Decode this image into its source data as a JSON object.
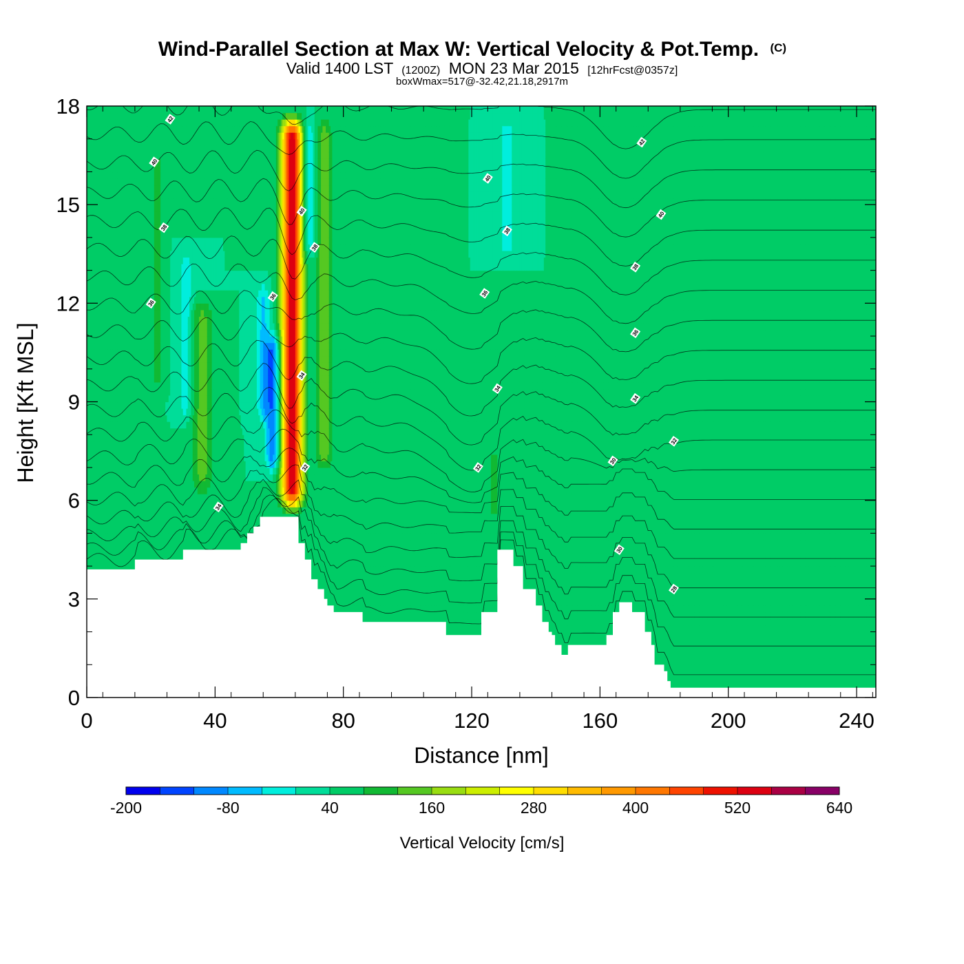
{
  "chart_data": {
    "type": "heatmap",
    "title": "Wind-Parallel Section at Max W: Vertical Velocity & Pot.Temp.",
    "title_mark": "(C)",
    "subtitle_parts": [
      "Valid 1400 LST",
      "(1200Z)",
      "MON 23 Mar 2015",
      "[12hrFcst@0357z]"
    ],
    "subsubtitle": "boxWmax=517@-32.42,21.18,2917m",
    "xlabel": "Distance [nm]",
    "ylabel": "Height [Kft MSL]",
    "xlim": [
      0,
      246
    ],
    "ylim": [
      0,
      18
    ],
    "xticks": [
      0,
      40,
      80,
      120,
      160,
      200,
      240
    ],
    "yticks": [
      0,
      3,
      6,
      9,
      12,
      15,
      18
    ],
    "colorbar": {
      "title": "Vertical Velocity [cm/s]",
      "min": -200,
      "step": 40,
      "labels": [
        -200,
        -80,
        40,
        160,
        280,
        400,
        520,
        640
      ],
      "colors": [
        "#0000ee",
        "#0044ff",
        "#0088ff",
        "#00bbff",
        "#00eedd",
        "#00dd99",
        "#00cc66",
        "#11b933",
        "#55c822",
        "#99dd11",
        "#ccee00",
        "#ffff00",
        "#ffdd00",
        "#ffbb00",
        "#ff9900",
        "#ff7700",
        "#ff4400",
        "#ee1100",
        "#dd0011",
        "#aa0044",
        "#880066"
      ]
    },
    "background_w": 40,
    "w_features": [
      {
        "x": 64,
        "xw": 3.2,
        "ybot": 5.4,
        "ytop": 18,
        "peak": 560
      },
      {
        "x": 74,
        "xw": 2.5,
        "ybot": 6.5,
        "ytop": 18,
        "peak": 150
      },
      {
        "x": 36,
        "xw": 3.5,
        "ybot": 5.8,
        "ytop": 12.5,
        "peak": 135
      },
      {
        "x": 22,
        "xw": 1.6,
        "ybot": 9,
        "ytop": 17,
        "peak": 110
      },
      {
        "x": 58,
        "xw": 2.3,
        "ybot": 6.5,
        "ytop": 11.5,
        "peak": -120
      },
      {
        "x": 55,
        "xw": 2.2,
        "ybot": 8,
        "ytop": 13,
        "peak": -50
      },
      {
        "x": 69,
        "xw": 2.2,
        "ybot": 13,
        "ytop": 18,
        "peak": -60
      },
      {
        "x": 131,
        "xw": 2.0,
        "ybot": 13,
        "ytop": 18,
        "peak": -40
      },
      {
        "x": 31,
        "xw": 2.0,
        "ybot": 8,
        "ytop": 14,
        "peak": -30
      },
      {
        "x": 127,
        "xw": 1.6,
        "ybot": 5,
        "ytop": 8,
        "peak": 110
      }
    ],
    "terrain": {
      "x": [
        0,
        15,
        15,
        30,
        30,
        38,
        38,
        44,
        44,
        48,
        48,
        50,
        50,
        52,
        52,
        54,
        54,
        56,
        56,
        60,
        60,
        66,
        66,
        68,
        68,
        70,
        70,
        72,
        72,
        74,
        74,
        75,
        75,
        77,
        77,
        78,
        78,
        80,
        80,
        86,
        86,
        94,
        94,
        112,
        112,
        123,
        123,
        128,
        128,
        133,
        133,
        136,
        136,
        140,
        140,
        142,
        142,
        144,
        144,
        145,
        145,
        146,
        146,
        148,
        148,
        150,
        150,
        153,
        153,
        162,
        162,
        164,
        164,
        166,
        166,
        170,
        170,
        174,
        174,
        176,
        176,
        177,
        177,
        180,
        180,
        181,
        181,
        182,
        182,
        246
      ],
      "y": [
        3.9,
        3.9,
        4.2,
        4.2,
        4.5,
        4.5,
        4.5,
        4.5,
        4.5,
        4.5,
        4.7,
        4.7,
        5.0,
        5.0,
        5.2,
        5.2,
        5.5,
        5.5,
        5.5,
        5.5,
        5.5,
        5.5,
        4.7,
        4.7,
        4.2,
        4.2,
        3.6,
        3.6,
        3.3,
        3.3,
        3.0,
        3.0,
        2.8,
        2.8,
        2.6,
        2.6,
        2.6,
        2.6,
        2.6,
        2.6,
        2.3,
        2.3,
        2.3,
        2.3,
        1.9,
        1.9,
        2.6,
        2.6,
        4.5,
        4.5,
        4.0,
        4.0,
        3.3,
        3.3,
        2.8,
        2.8,
        2.3,
        2.3,
        2.0,
        2.0,
        1.9,
        1.9,
        1.6,
        1.6,
        1.3,
        1.3,
        1.6,
        1.6,
        1.6,
        1.6,
        1.9,
        1.9,
        2.6,
        2.6,
        2.9,
        2.9,
        2.6,
        2.6,
        2.0,
        2.0,
        1.6,
        1.6,
        1.0,
        1.0,
        0.8,
        0.8,
        0.5,
        0.5,
        0.3,
        0.3
      ]
    },
    "contour_labels": [
      {
        "x": 26,
        "y": 17.6,
        "text": "42"
      },
      {
        "x": 21,
        "y": 16.3,
        "text": "40"
      },
      {
        "x": 24,
        "y": 14.3,
        "text": "38"
      },
      {
        "x": 20,
        "y": 12.0,
        "text": "36"
      },
      {
        "x": 41,
        "y": 5.8,
        "text": "34"
      },
      {
        "x": 58,
        "y": 12.2,
        "text": "36"
      },
      {
        "x": 67,
        "y": 14.8,
        "text": "40"
      },
      {
        "x": 71,
        "y": 13.7,
        "text": "38"
      },
      {
        "x": 67,
        "y": 9.8,
        "text": "34"
      },
      {
        "x": 68,
        "y": 7.0,
        "text": "32"
      },
      {
        "x": 125,
        "y": 15.8,
        "text": "40"
      },
      {
        "x": 131,
        "y": 14.2,
        "text": "38"
      },
      {
        "x": 124,
        "y": 12.3,
        "text": "36"
      },
      {
        "x": 128,
        "y": 9.4,
        "text": "34"
      },
      {
        "x": 122,
        "y": 7.0,
        "text": "32"
      },
      {
        "x": 173,
        "y": 16.9,
        "text": "42"
      },
      {
        "x": 179,
        "y": 14.7,
        "text": "40"
      },
      {
        "x": 171,
        "y": 13.1,
        "text": "38"
      },
      {
        "x": 171,
        "y": 11.1,
        "text": "36"
      },
      {
        "x": 171,
        "y": 9.1,
        "text": "34"
      },
      {
        "x": 183,
        "y": 7.8,
        "text": "32"
      },
      {
        "x": 164,
        "y": 7.2,
        "text": "30"
      },
      {
        "x": 166,
        "y": 4.5,
        "text": "30"
      },
      {
        "x": 183,
        "y": 3.3,
        "text": "28"
      }
    ]
  }
}
